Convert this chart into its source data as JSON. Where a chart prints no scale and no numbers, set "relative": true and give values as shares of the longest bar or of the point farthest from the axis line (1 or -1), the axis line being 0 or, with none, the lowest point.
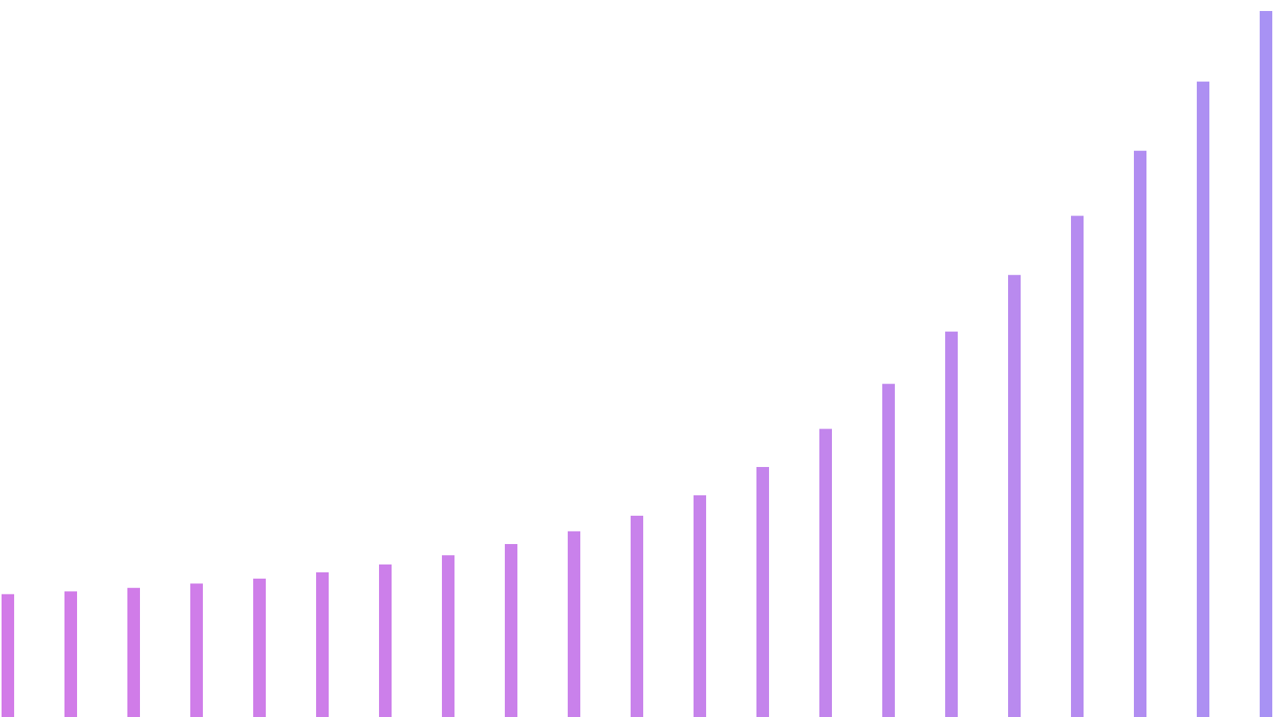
{
  "chart_data": {
    "type": "bar",
    "relative": true,
    "categories": [
      null,
      null,
      null,
      null,
      null,
      null,
      null,
      null,
      null,
      null,
      null,
      null,
      null,
      null,
      null,
      null,
      null,
      null,
      null,
      null,
      null
    ],
    "values": [
      0.174,
      0.178,
      0.183,
      0.189,
      0.196,
      0.205,
      0.216,
      0.229,
      0.245,
      0.263,
      0.285,
      0.314,
      0.354,
      0.408,
      0.472,
      0.546,
      0.626,
      0.71,
      0.802,
      0.9,
      1.0
    ],
    "colors": [
      "#d27be8",
      "#d17ce8",
      "#d07ce8",
      "#cf7de9",
      "#ce7ee9",
      "#cd7ee9",
      "#cc7fea",
      "#cb80ea",
      "#ca80ea",
      "#c981eb",
      "#c882eb",
      "#c683eb",
      "#c484ec",
      "#c285ec",
      "#bf86ed",
      "#bc88ee",
      "#b98aef",
      "#b58bf0",
      "#b18df1",
      "#ad8ff2",
      "#a892f4"
    ]
  }
}
